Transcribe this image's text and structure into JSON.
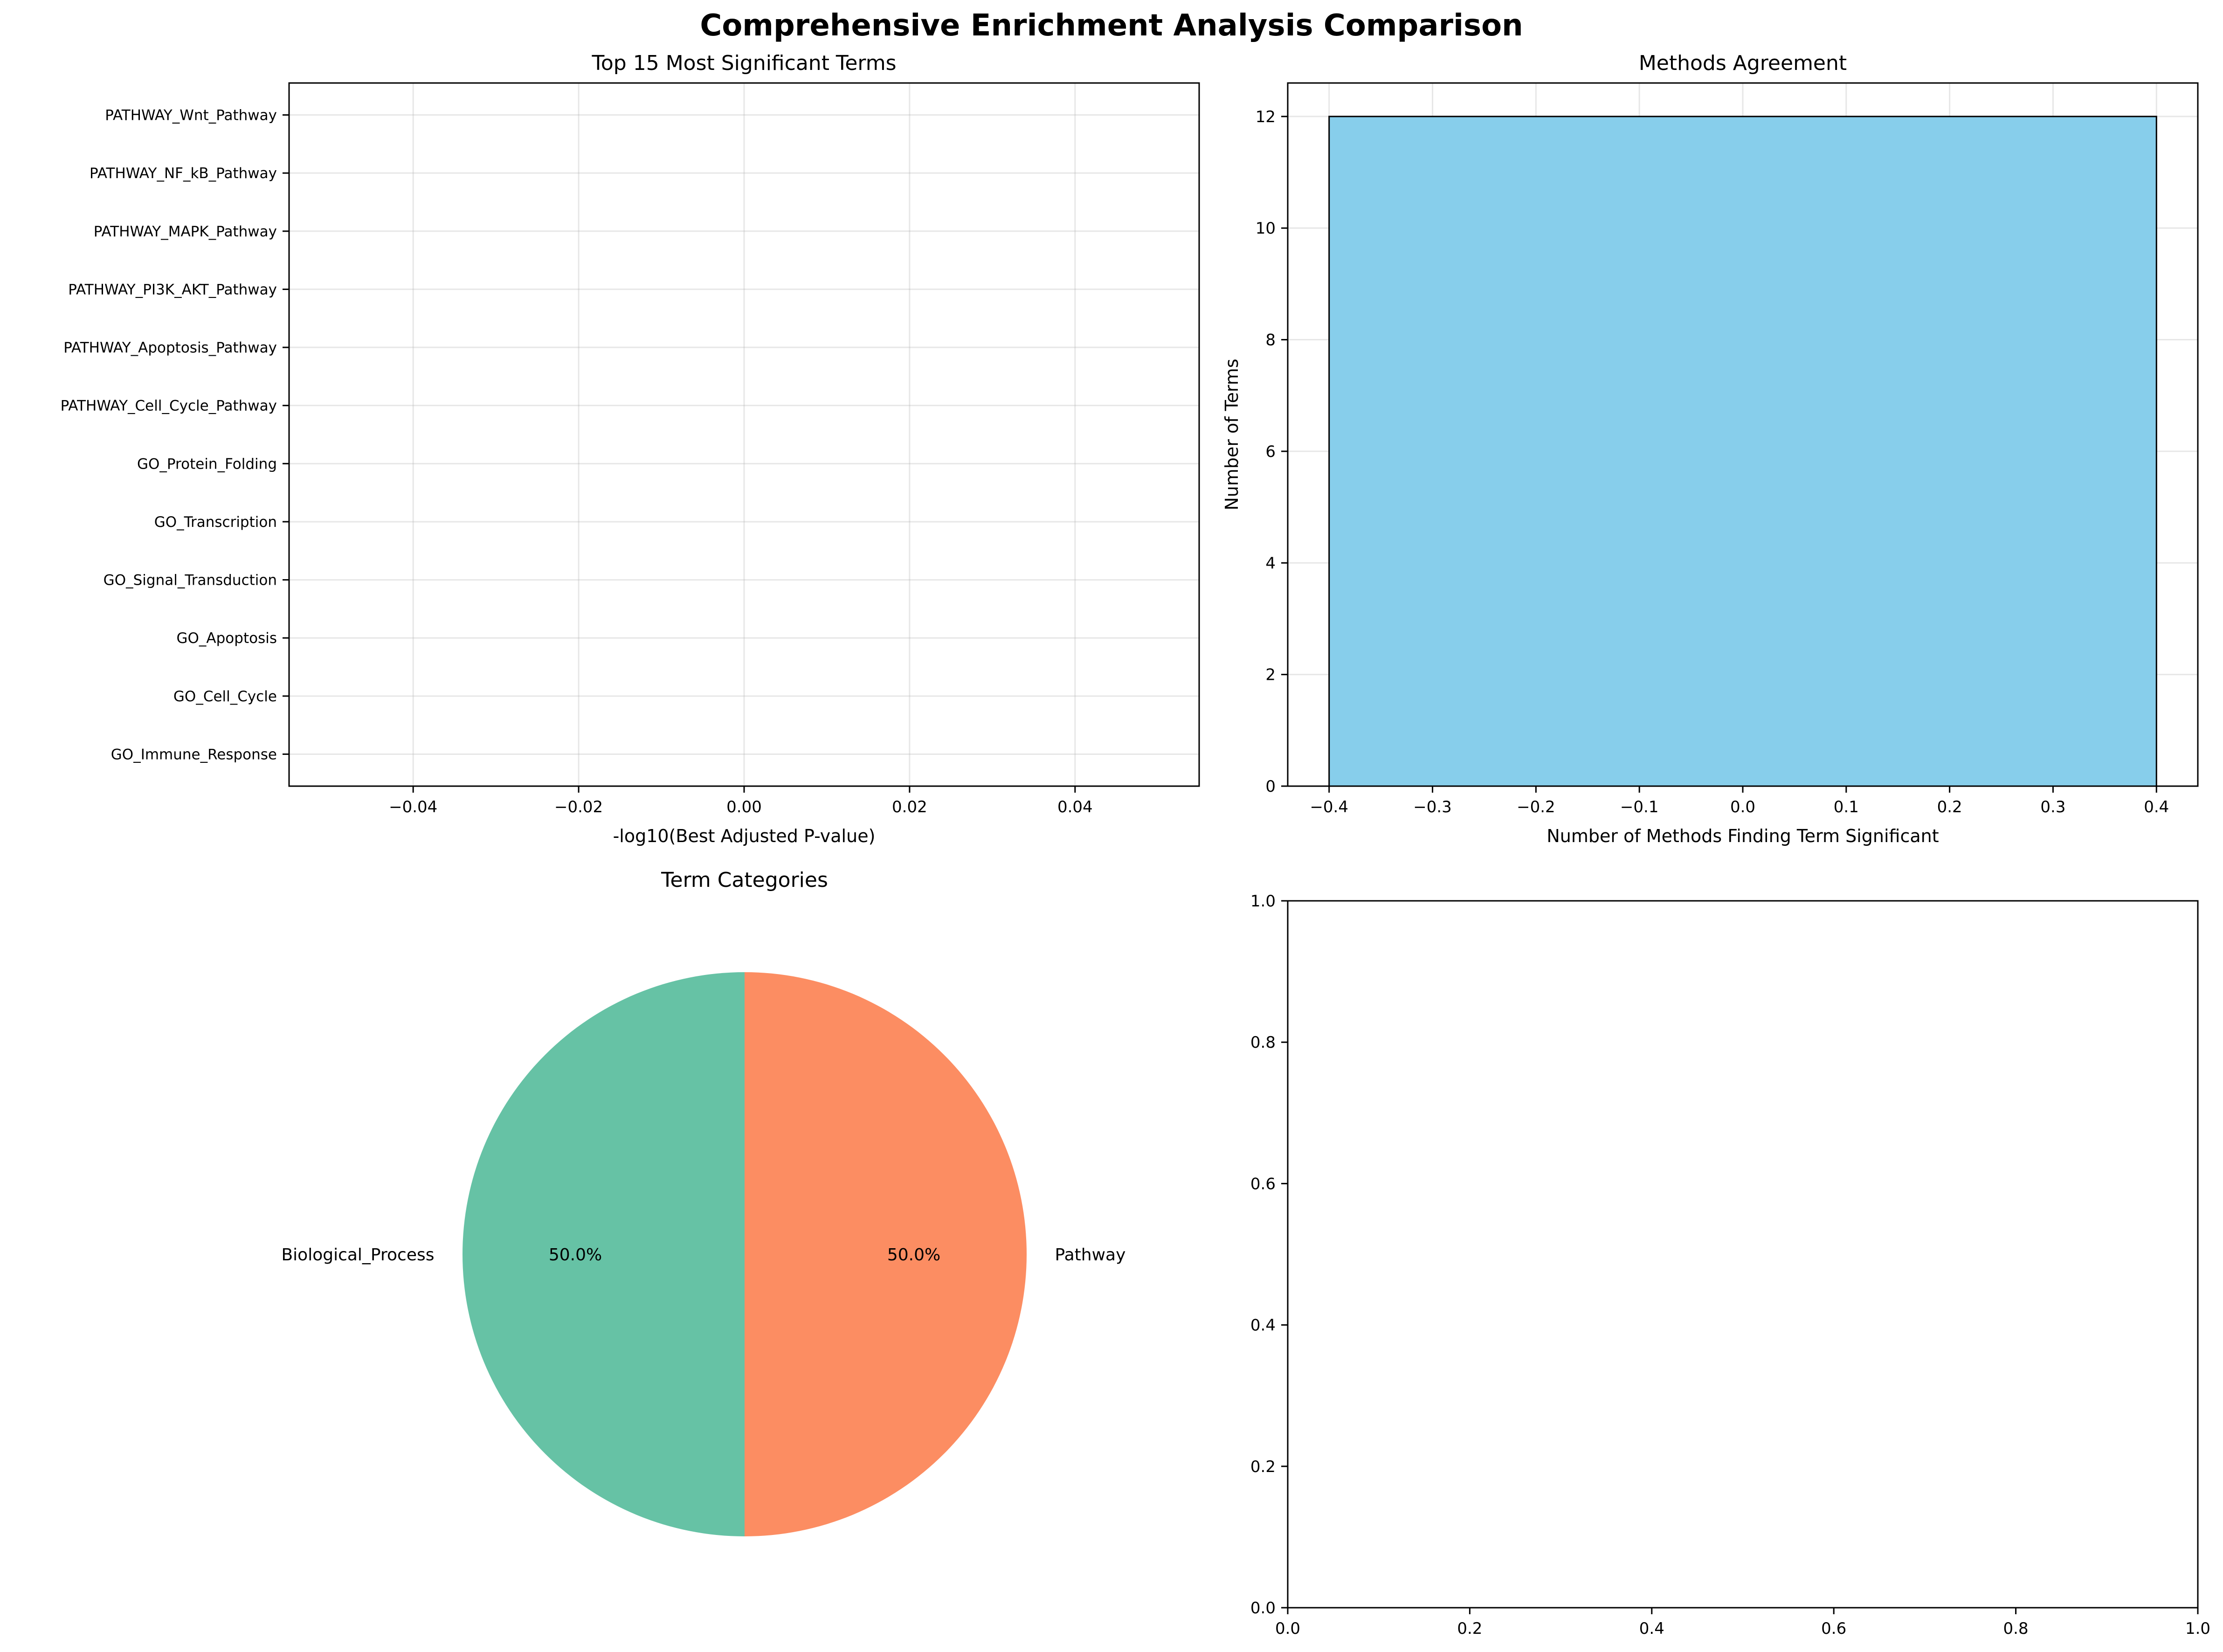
{
  "figure": {
    "suptitle": "Comprehensive Enrichment Analysis Comparison"
  },
  "chart_data": [
    {
      "type": "bar",
      "orientation": "horizontal",
      "title": "Top 15 Most Significant Terms",
      "xlabel": "-log10(Best Adjusted P-value)",
      "ylabel": "",
      "categories": [
        "PATHWAY_Wnt_Pathway",
        "PATHWAY_NF_kB_Pathway",
        "PATHWAY_MAPK_Pathway",
        "PATHWAY_PI3K_AKT_Pathway",
        "PATHWAY_Apoptosis_Pathway",
        "PATHWAY_Cell_Cycle_Pathway",
        "GO_Protein_Folding",
        "GO_Transcription",
        "GO_Signal_Transduction",
        "GO_Apoptosis",
        "GO_Cell_Cycle",
        "GO_Immune_Response"
      ],
      "values": [
        0,
        0,
        0,
        0,
        0,
        0,
        0,
        0,
        0,
        0,
        0,
        0
      ],
      "xlim": [
        -0.055,
        0.055
      ],
      "xticks": [
        -0.04,
        -0.02,
        0.0,
        0.02,
        0.04
      ],
      "xtick_labels": [
        "−0.04",
        "−0.02",
        "0.00",
        "0.02",
        "0.04"
      ],
      "grid": true
    },
    {
      "type": "bar",
      "title": "Methods Agreement",
      "xlabel": "Number of Methods Finding Term Significant",
      "ylabel": "Number of Terms",
      "x": [
        0
      ],
      "values": [
        12
      ],
      "bar_width": 0.8,
      "xlim": [
        -0.44,
        0.44
      ],
      "ylim": [
        0,
        12.6
      ],
      "xticks": [
        -0.4,
        -0.3,
        -0.2,
        -0.1,
        0.0,
        0.1,
        0.2,
        0.3,
        0.4
      ],
      "xtick_labels": [
        "−0.4",
        "−0.3",
        "−0.2",
        "−0.1",
        "0.0",
        "0.1",
        "0.2",
        "0.3",
        "0.4"
      ],
      "yticks": [
        0,
        2,
        4,
        6,
        8,
        10,
        12
      ],
      "ytick_labels": [
        "0",
        "2",
        "4",
        "6",
        "8",
        "10",
        "12"
      ],
      "color": "#87CEEB",
      "grid": true
    },
    {
      "type": "pie",
      "title": "Term Categories",
      "labels": [
        "Biological_Process",
        "Pathway"
      ],
      "values": [
        50.0,
        50.0
      ],
      "pct_labels": [
        "50.0%",
        "50.0%"
      ],
      "colors": [
        "#66c2a5",
        "#fc8d62"
      ]
    },
    {
      "type": "empty",
      "xlim": [
        0,
        1
      ],
      "ylim": [
        0,
        1
      ],
      "xticks": [
        0.0,
        0.2,
        0.4,
        0.6,
        0.8,
        1.0
      ],
      "xtick_labels": [
        "0.0",
        "0.2",
        "0.4",
        "0.6",
        "0.8",
        "1.0"
      ],
      "yticks": [
        0.0,
        0.2,
        0.4,
        0.6,
        0.8,
        1.0
      ],
      "ytick_labels": [
        "0.0",
        "0.2",
        "0.4",
        "0.6",
        "0.8",
        "1.0"
      ]
    }
  ]
}
